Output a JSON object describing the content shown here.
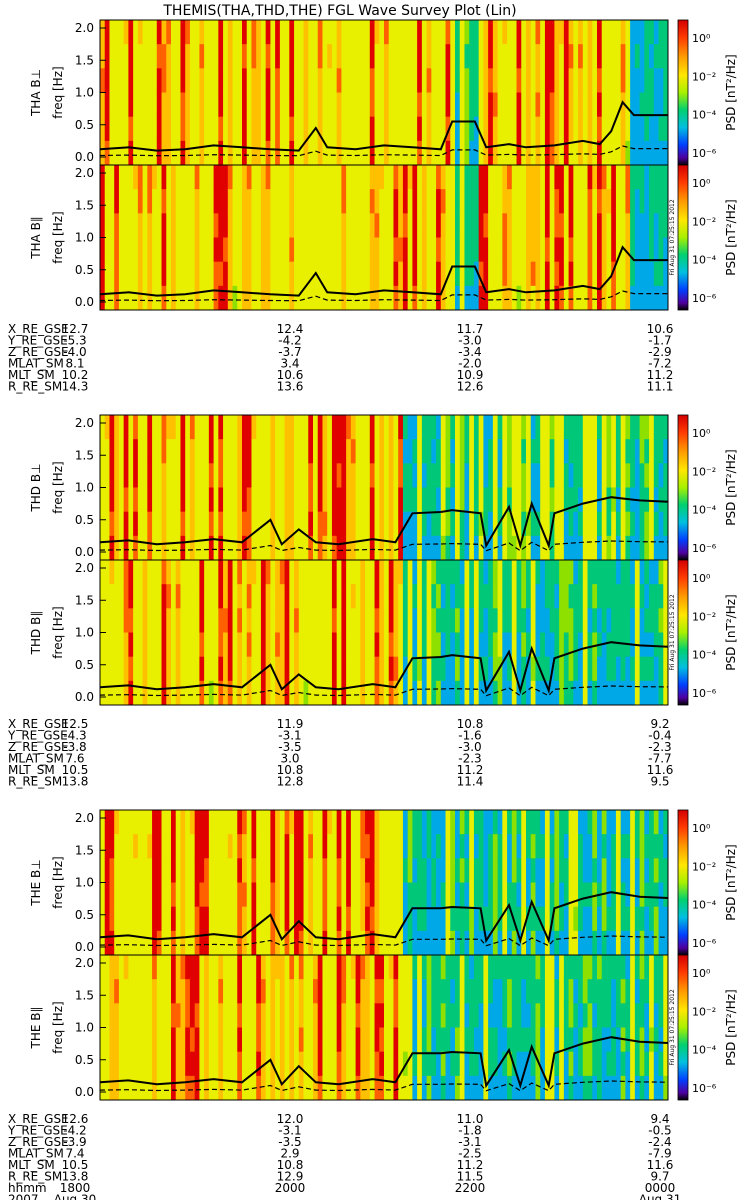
{
  "title": "THEMIS(THA,THD,THE) FGL Wave Survey Plot (Lin)",
  "timestamp": "Fri Aug 31 07:25:15 2012",
  "colorbar": {
    "label": "PSD [nT²/Hz]",
    "ticks": [
      "10⁰",
      "10⁻²",
      "10⁻⁴",
      "10⁻⁶"
    ],
    "exponents": [
      0,
      -2,
      -4,
      -6
    ]
  },
  "axes": {
    "ylabel": "freq [Hz]",
    "ylim": [
      0.0,
      2.0
    ],
    "yticks": [
      "2.0",
      "1.5",
      "1.0",
      "0.5",
      "0.0"
    ]
  },
  "chart_data": {
    "type": "heatmap",
    "x_time_range": [
      "1800",
      "0000"
    ],
    "ylim": [
      0,
      2.0
    ],
    "probes": [
      {
        "id": "THA",
        "panels": [
          {
            "label": "THA B⊥",
            "fce_line": [
              [
                0,
                0.12
              ],
              [
                0.05,
                0.15
              ],
              [
                0.1,
                0.1
              ],
              [
                0.15,
                0.12
              ],
              [
                0.2,
                0.18
              ],
              [
                0.25,
                0.15
              ],
              [
                0.3,
                0.12
              ],
              [
                0.35,
                0.1
              ],
              [
                0.38,
                0.45
              ],
              [
                0.4,
                0.15
              ],
              [
                0.45,
                0.12
              ],
              [
                0.5,
                0.18
              ],
              [
                0.55,
                0.15
              ],
              [
                0.6,
                0.12
              ],
              [
                0.62,
                0.55
              ],
              [
                0.66,
                0.55
              ],
              [
                0.68,
                0.15
              ],
              [
                0.72,
                0.2
              ],
              [
                0.75,
                0.15
              ],
              [
                0.8,
                0.18
              ],
              [
                0.85,
                0.25
              ],
              [
                0.88,
                0.2
              ],
              [
                0.9,
                0.4
              ],
              [
                0.92,
                0.85
              ],
              [
                0.94,
                0.65
              ],
              [
                1,
                0.65
              ]
            ]
          },
          {
            "label": "THA B∥",
            "fce_line": [
              [
                0,
                0.12
              ],
              [
                0.05,
                0.15
              ],
              [
                0.1,
                0.1
              ],
              [
                0.15,
                0.12
              ],
              [
                0.2,
                0.18
              ],
              [
                0.25,
                0.15
              ],
              [
                0.3,
                0.12
              ],
              [
                0.35,
                0.1
              ],
              [
                0.38,
                0.45
              ],
              [
                0.4,
                0.15
              ],
              [
                0.45,
                0.12
              ],
              [
                0.5,
                0.18
              ],
              [
                0.55,
                0.15
              ],
              [
                0.6,
                0.12
              ],
              [
                0.62,
                0.55
              ],
              [
                0.66,
                0.55
              ],
              [
                0.68,
                0.15
              ],
              [
                0.72,
                0.2
              ],
              [
                0.75,
                0.15
              ],
              [
                0.8,
                0.18
              ],
              [
                0.85,
                0.25
              ],
              [
                0.88,
                0.2
              ],
              [
                0.9,
                0.4
              ],
              [
                0.92,
                0.85
              ],
              [
                0.94,
                0.65
              ],
              [
                1,
                0.65
              ]
            ]
          }
        ],
        "ephemeris": [
          {
            "name": "X_RE_GSE",
            "values": [
              "12.7",
              "12.4",
              "11.7",
              "10.6"
            ]
          },
          {
            "name": "Y_RE_GSE",
            "values": [
              "-5.3",
              "-4.2",
              "-3.0",
              "-1.7"
            ]
          },
          {
            "name": "Z_RE_GSE",
            "values": [
              "-4.0",
              "-3.7",
              "-3.4",
              "-2.9"
            ]
          },
          {
            "name": "MLAT_SM",
            "values": [
              "8.1",
              "3.4",
              "-2.0",
              "-7.2"
            ]
          },
          {
            "name": "MLT_SM",
            "values": [
              "10.2",
              "10.6",
              "10.9",
              "11.2"
            ]
          },
          {
            "name": "R_RE_SM",
            "values": [
              "14.3",
              "13.6",
              "12.6",
              "11.1"
            ]
          }
        ]
      },
      {
        "id": "THD",
        "panels": [
          {
            "label": "THD B⊥",
            "fce_line": [
              [
                0,
                0.15
              ],
              [
                0.05,
                0.18
              ],
              [
                0.1,
                0.12
              ],
              [
                0.15,
                0.15
              ],
              [
                0.2,
                0.2
              ],
              [
                0.25,
                0.15
              ],
              [
                0.3,
                0.5
              ],
              [
                0.32,
                0.12
              ],
              [
                0.35,
                0.35
              ],
              [
                0.38,
                0.15
              ],
              [
                0.42,
                0.12
              ],
              [
                0.48,
                0.2
              ],
              [
                0.52,
                0.15
              ],
              [
                0.55,
                0.6
              ],
              [
                0.6,
                0.62
              ],
              [
                0.62,
                0.65
              ],
              [
                0.67,
                0.6
              ],
              [
                0.68,
                0.1
              ],
              [
                0.72,
                0.7
              ],
              [
                0.74,
                0.1
              ],
              [
                0.76,
                0.75
              ],
              [
                0.79,
                0.1
              ],
              [
                0.8,
                0.6
              ],
              [
                0.85,
                0.75
              ],
              [
                0.9,
                0.85
              ],
              [
                0.95,
                0.8
              ],
              [
                1,
                0.78
              ]
            ]
          },
          {
            "label": "THD B∥",
            "fce_line": [
              [
                0,
                0.15
              ],
              [
                0.05,
                0.18
              ],
              [
                0.1,
                0.12
              ],
              [
                0.15,
                0.15
              ],
              [
                0.2,
                0.2
              ],
              [
                0.25,
                0.15
              ],
              [
                0.3,
                0.5
              ],
              [
                0.32,
                0.12
              ],
              [
                0.35,
                0.35
              ],
              [
                0.38,
                0.15
              ],
              [
                0.42,
                0.12
              ],
              [
                0.48,
                0.2
              ],
              [
                0.52,
                0.15
              ],
              [
                0.55,
                0.6
              ],
              [
                0.6,
                0.62
              ],
              [
                0.62,
                0.65
              ],
              [
                0.67,
                0.6
              ],
              [
                0.68,
                0.1
              ],
              [
                0.72,
                0.7
              ],
              [
                0.74,
                0.1
              ],
              [
                0.76,
                0.75
              ],
              [
                0.79,
                0.1
              ],
              [
                0.8,
                0.6
              ],
              [
                0.85,
                0.75
              ],
              [
                0.9,
                0.85
              ],
              [
                0.95,
                0.8
              ],
              [
                1,
                0.78
              ]
            ]
          }
        ],
        "ephemeris": [
          {
            "name": "X_RE_GSE",
            "values": [
              "12.5",
              "11.9",
              "10.8",
              "9.2"
            ]
          },
          {
            "name": "Y_RE_GSE",
            "values": [
              "-4.3",
              "-3.1",
              "-1.6",
              "-0.4"
            ]
          },
          {
            "name": "Z_RE_GSE",
            "values": [
              "-3.8",
              "-3.5",
              "-3.0",
              "-2.3"
            ]
          },
          {
            "name": "MLAT_SM",
            "values": [
              "7.6",
              "3.0",
              "-2.3",
              "-7.7"
            ]
          },
          {
            "name": "MLT_SM",
            "values": [
              "10.5",
              "10.8",
              "11.2",
              "11.6"
            ]
          },
          {
            "name": "R_RE_SM",
            "values": [
              "13.8",
              "12.8",
              "11.4",
              "9.5"
            ]
          }
        ]
      },
      {
        "id": "THE",
        "panels": [
          {
            "label": "THE B⊥",
            "fce_line": [
              [
                0,
                0.15
              ],
              [
                0.05,
                0.18
              ],
              [
                0.1,
                0.12
              ],
              [
                0.15,
                0.15
              ],
              [
                0.2,
                0.2
              ],
              [
                0.25,
                0.15
              ],
              [
                0.3,
                0.5
              ],
              [
                0.32,
                0.12
              ],
              [
                0.35,
                0.4
              ],
              [
                0.38,
                0.15
              ],
              [
                0.42,
                0.12
              ],
              [
                0.48,
                0.2
              ],
              [
                0.52,
                0.15
              ],
              [
                0.55,
                0.6
              ],
              [
                0.6,
                0.6
              ],
              [
                0.62,
                0.62
              ],
              [
                0.67,
                0.6
              ],
              [
                0.68,
                0.1
              ],
              [
                0.72,
                0.65
              ],
              [
                0.74,
                0.1
              ],
              [
                0.76,
                0.7
              ],
              [
                0.79,
                0.1
              ],
              [
                0.8,
                0.6
              ],
              [
                0.85,
                0.75
              ],
              [
                0.9,
                0.85
              ],
              [
                0.95,
                0.78
              ],
              [
                1,
                0.76
              ]
            ]
          },
          {
            "label": "THE B∥",
            "fce_line": [
              [
                0,
                0.15
              ],
              [
                0.05,
                0.18
              ],
              [
                0.1,
                0.12
              ],
              [
                0.15,
                0.15
              ],
              [
                0.2,
                0.2
              ],
              [
                0.25,
                0.15
              ],
              [
                0.3,
                0.5
              ],
              [
                0.32,
                0.12
              ],
              [
                0.35,
                0.4
              ],
              [
                0.38,
                0.15
              ],
              [
                0.42,
                0.12
              ],
              [
                0.48,
                0.2
              ],
              [
                0.52,
                0.15
              ],
              [
                0.55,
                0.6
              ],
              [
                0.6,
                0.6
              ],
              [
                0.62,
                0.62
              ],
              [
                0.67,
                0.6
              ],
              [
                0.68,
                0.1
              ],
              [
                0.72,
                0.65
              ],
              [
                0.74,
                0.1
              ],
              [
                0.76,
                0.7
              ],
              [
                0.79,
                0.1
              ],
              [
                0.8,
                0.6
              ],
              [
                0.85,
                0.75
              ],
              [
                0.9,
                0.85
              ],
              [
                0.95,
                0.78
              ],
              [
                1,
                0.76
              ]
            ]
          }
        ],
        "ephemeris": [
          {
            "name": "X_RE_GSE",
            "values": [
              "12.6",
              "12.0",
              "11.0",
              "9.4"
            ]
          },
          {
            "name": "Y_RE_GSE",
            "values": [
              "-4.2",
              "-3.1",
              "-1.8",
              "-0.5"
            ]
          },
          {
            "name": "Z_RE_GSE",
            "values": [
              "-3.9",
              "-3.5",
              "-3.1",
              "-2.4"
            ]
          },
          {
            "name": "MLAT_SM",
            "values": [
              "7.4",
              "2.9",
              "-2.5",
              "-7.9"
            ]
          },
          {
            "name": "MLT_SM",
            "values": [
              "10.5",
              "10.8",
              "11.2",
              "11.6"
            ]
          },
          {
            "name": "R_RE_SM",
            "values": [
              "13.8",
              "12.9",
              "11.5",
              "9.7"
            ]
          },
          {
            "name": "hhmm",
            "values": [
              "1800",
              "2000",
              "2200",
              "0000"
            ]
          }
        ],
        "date_row": {
          "year": "2007",
          "start": "Aug 30",
          "end": "Aug 31"
        }
      }
    ]
  }
}
